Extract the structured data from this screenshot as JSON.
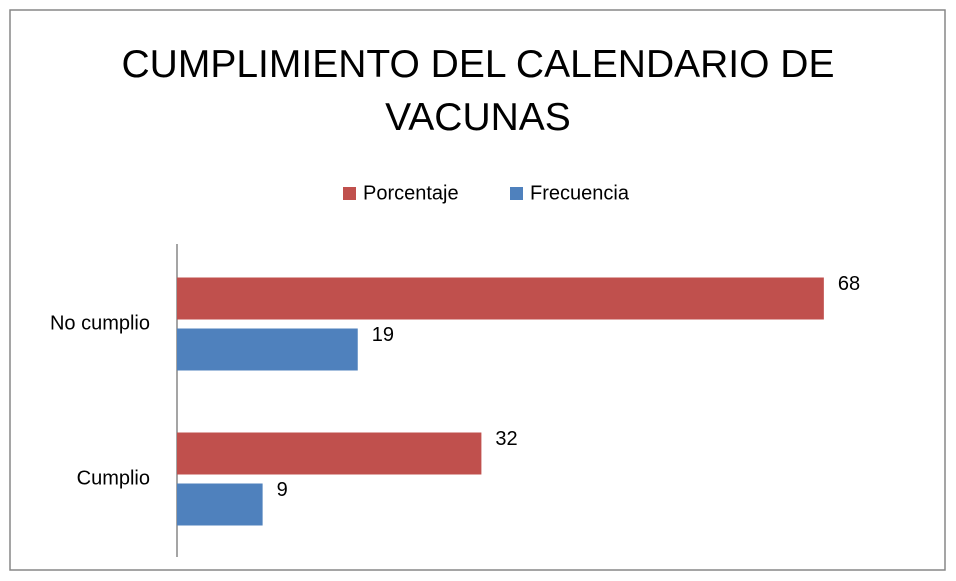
{
  "chart_data": {
    "type": "hbar",
    "title": "CUMPLIMIENTO DEL CALENDARIO DE VACUNAS",
    "categories": [
      "No cumplio",
      "Cumplio"
    ],
    "series": [
      {
        "name": "Porcentaje",
        "color": "#c0504d",
        "values": [
          68,
          32
        ]
      },
      {
        "name": "Frecuencia",
        "color": "#4f81bd",
        "values": [
          19,
          9
        ]
      }
    ],
    "xlim": [
      0,
      80
    ],
    "legend": "top"
  }
}
